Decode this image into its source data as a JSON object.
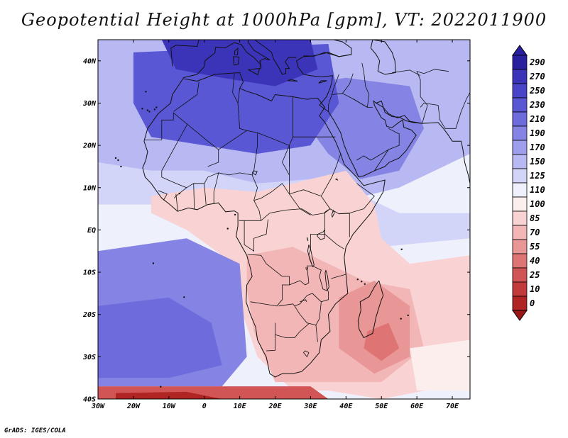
{
  "title": "Geopotential Height at 1000hPa [gpm], VT: 2022011900",
  "credit": "GrADS: IGES/COLA",
  "map": {
    "lon_min": -30,
    "lon_max": 75,
    "lat_min": -40,
    "lat_max": 45,
    "x_ticks": [
      {
        "value": -30,
        "label": "30W"
      },
      {
        "value": -20,
        "label": "20W"
      },
      {
        "value": -10,
        "label": "10W"
      },
      {
        "value": 0,
        "label": "0"
      },
      {
        "value": 10,
        "label": "10E"
      },
      {
        "value": 20,
        "label": "20E"
      },
      {
        "value": 30,
        "label": "30E"
      },
      {
        "value": 40,
        "label": "40E"
      },
      {
        "value": 50,
        "label": "50E"
      },
      {
        "value": 60,
        "label": "60E"
      },
      {
        "value": 70,
        "label": "70E"
      }
    ],
    "y_ticks": [
      {
        "value": 40,
        "label": "40N"
      },
      {
        "value": 30,
        "label": "30N"
      },
      {
        "value": 20,
        "label": "20N"
      },
      {
        "value": 10,
        "label": "10N"
      },
      {
        "value": 0,
        "label": "EQ"
      },
      {
        "value": -10,
        "label": "10S"
      },
      {
        "value": -20,
        "label": "20S"
      },
      {
        "value": -30,
        "label": "30S"
      },
      {
        "value": -40,
        "label": "40S"
      }
    ]
  },
  "colorbar": {
    "levels": [
      {
        "label": "290",
        "color": "#2a1f9e"
      },
      {
        "label": "270",
        "color": "#3c34b8"
      },
      {
        "label": "250",
        "color": "#4a44c8"
      },
      {
        "label": "230",
        "color": "#5a57d4"
      },
      {
        "label": "210",
        "color": "#6e6cdc"
      },
      {
        "label": "190",
        "color": "#8584e4"
      },
      {
        "label": "170",
        "color": "#9e9eec"
      },
      {
        "label": "150",
        "color": "#b8b9f2"
      },
      {
        "label": "125",
        "color": "#d3d5f8"
      },
      {
        "label": "110",
        "color": "#eef0fc"
      },
      {
        "label": "100",
        "color": "#fdeeee"
      },
      {
        "label": "85",
        "color": "#f9d3d3"
      },
      {
        "label": "70",
        "color": "#f2b6b6"
      },
      {
        "label": "55",
        "color": "#e99696"
      },
      {
        "label": "40",
        "color": "#de7474"
      },
      {
        "label": "25",
        "color": "#d15555"
      },
      {
        "label": "10",
        "color": "#c23a3a"
      },
      {
        "label": "0",
        "color": "#b02424"
      }
    ],
    "bottom_color": "#9c1818"
  },
  "fields": {
    "sahara_high": "#5a57d4",
    "med_high": "#3c34b8",
    "arabia_high": "#8584e4",
    "north_band": "#b8b9f2",
    "sahel_band": "#d3d5f8",
    "tropics_low": "#f9d3d3",
    "south_africa_low": "#f2b6b6",
    "madagascar_low": "#e99696",
    "madagascar_core": "#de7474",
    "south_atlantic_high": "#8584e4",
    "south_atlantic_core": "#6e6cdc",
    "southern_ocean_low": "#d15555",
    "southern_ocean_core": "#b02424",
    "indian_ocean_neutral": "#fdeeee"
  }
}
